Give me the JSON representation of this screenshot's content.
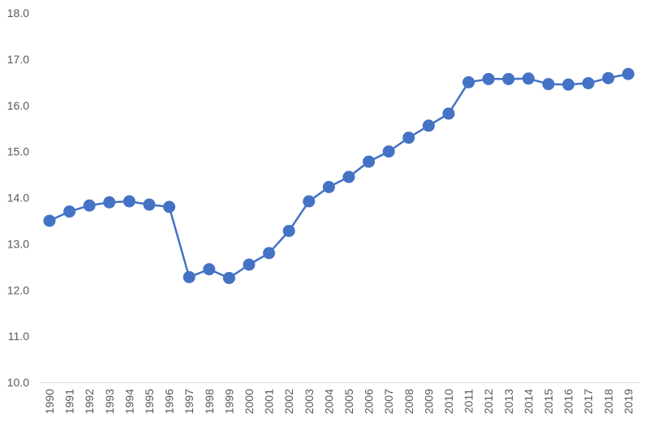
{
  "chart_data": {
    "type": "line",
    "title": "",
    "xlabel": "",
    "ylabel": "",
    "ylim": [
      10.0,
      18.0
    ],
    "y_ticks": [
      "10.0",
      "11.0",
      "12.0",
      "13.0",
      "14.0",
      "15.0",
      "16.0",
      "17.0",
      "18.0"
    ],
    "grid": false,
    "legend": "none",
    "categories": [
      "1990",
      "1991",
      "1992",
      "1993",
      "1994",
      "1995",
      "1996",
      "1997",
      "1998",
      "1999",
      "2000",
      "2001",
      "2002",
      "2003",
      "2004",
      "2005",
      "2006",
      "2007",
      "2008",
      "2009",
      "2010",
      "2011",
      "2012",
      "2013",
      "2014",
      "2015",
      "2016",
      "2017",
      "2018",
      "2019"
    ],
    "series": [
      {
        "color": "#4472C4",
        "values": [
          13.5,
          13.7,
          13.83,
          13.9,
          13.92,
          13.85,
          13.8,
          12.28,
          12.45,
          12.26,
          12.55,
          12.8,
          13.28,
          13.92,
          14.23,
          14.45,
          14.78,
          15.0,
          15.3,
          15.56,
          15.82,
          16.5,
          16.57,
          16.57,
          16.58,
          16.46,
          16.45,
          16.48,
          16.59,
          16.68
        ]
      }
    ]
  }
}
